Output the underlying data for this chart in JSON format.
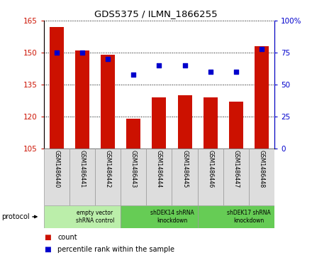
{
  "title": "GDS5375 / ILMN_1866255",
  "samples": [
    "GSM1486440",
    "GSM1486441",
    "GSM1486442",
    "GSM1486443",
    "GSM1486444",
    "GSM1486445",
    "GSM1486446",
    "GSM1486447",
    "GSM1486448"
  ],
  "counts": [
    162,
    151,
    149,
    119,
    129,
    130,
    129,
    127,
    153
  ],
  "percentiles": [
    75,
    75,
    70,
    58,
    65,
    65,
    60,
    60,
    78
  ],
  "ylim_left": [
    105,
    165
  ],
  "ylim_right": [
    0,
    100
  ],
  "yticks_left": [
    105,
    120,
    135,
    150,
    165
  ],
  "yticks_right": [
    0,
    25,
    50,
    75,
    100
  ],
  "ytick_labels_right": [
    "0",
    "25",
    "50",
    "75",
    "100%"
  ],
  "bar_color": "#CC1100",
  "dot_color": "#0000CC",
  "groups": [
    {
      "label": "empty vector\nshRNA control",
      "start": 0,
      "end": 3,
      "color": "#BBEEAA"
    },
    {
      "label": "shDEK14 shRNA\nknockdown",
      "start": 3,
      "end": 6,
      "color": "#66CC55"
    },
    {
      "label": "shDEK17 shRNA\nknockdown",
      "start": 6,
      "end": 9,
      "color": "#66CC55"
    }
  ],
  "legend_count_label": "count",
  "legend_pct_label": "percentile rank within the sample",
  "protocol_label": "protocol"
}
